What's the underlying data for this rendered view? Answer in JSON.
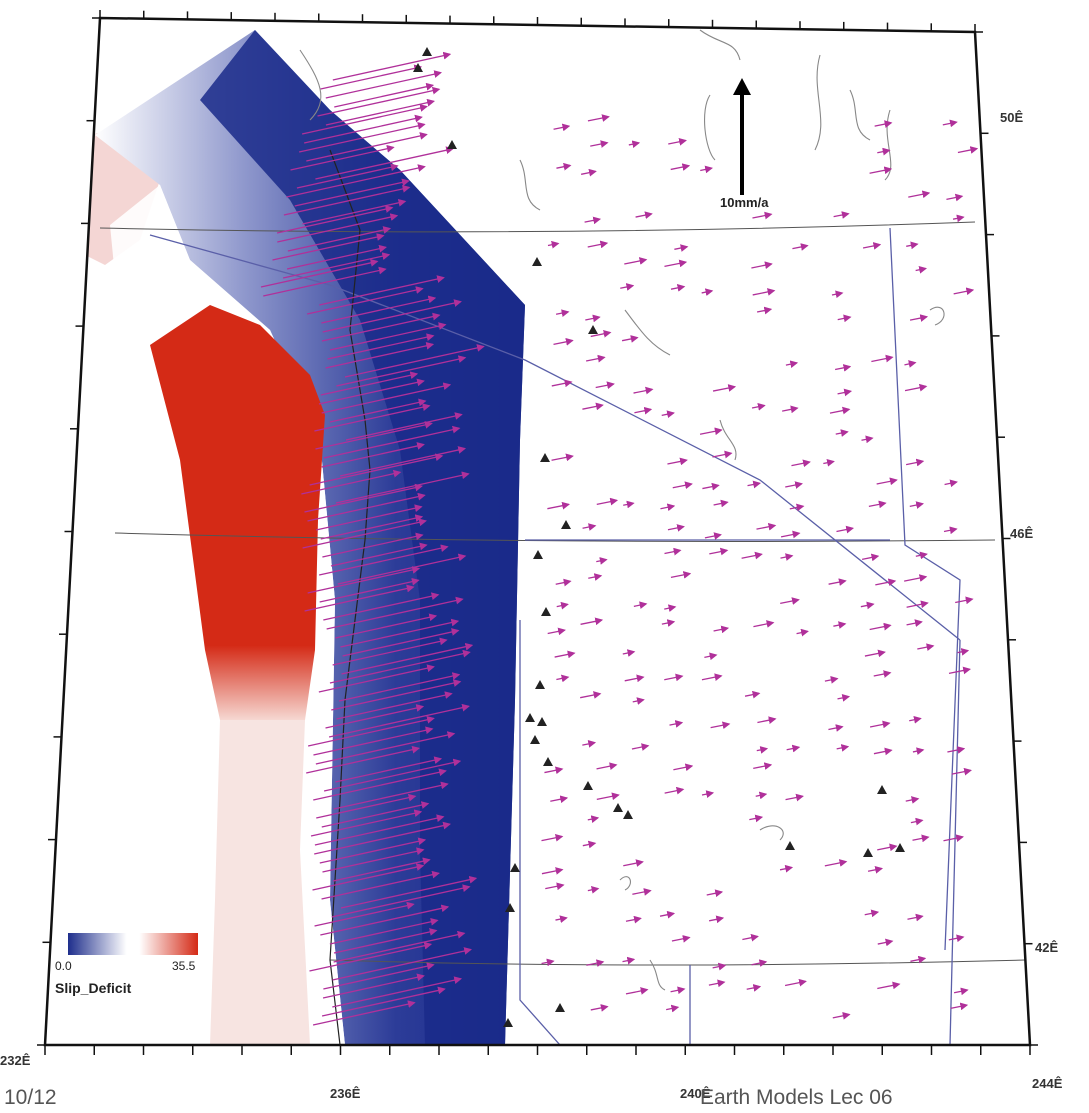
{
  "map": {
    "lat_labels": [
      "50Ê",
      "46Ê",
      "42Ê"
    ],
    "lon_labels": [
      "232Ê",
      "236Ê",
      "240Ê",
      "244Ê"
    ],
    "scale_label": "10mm/a",
    "legend": {
      "min": "0.0",
      "max": "35.5",
      "title": "Slip_Deficit",
      "colors": {
        "low": "#1e2e8c",
        "mid": "#ffffff",
        "high": "#d42a16"
      }
    },
    "colors": {
      "locked_high": "#d42a16",
      "locked_low": "#1a2a8a",
      "vectors": "#b0309a",
      "volcano": "#222222",
      "borders": "#5a5fa8"
    }
  },
  "footer": {
    "left": "10/12",
    "right": "Earth Models Lec 06"
  }
}
